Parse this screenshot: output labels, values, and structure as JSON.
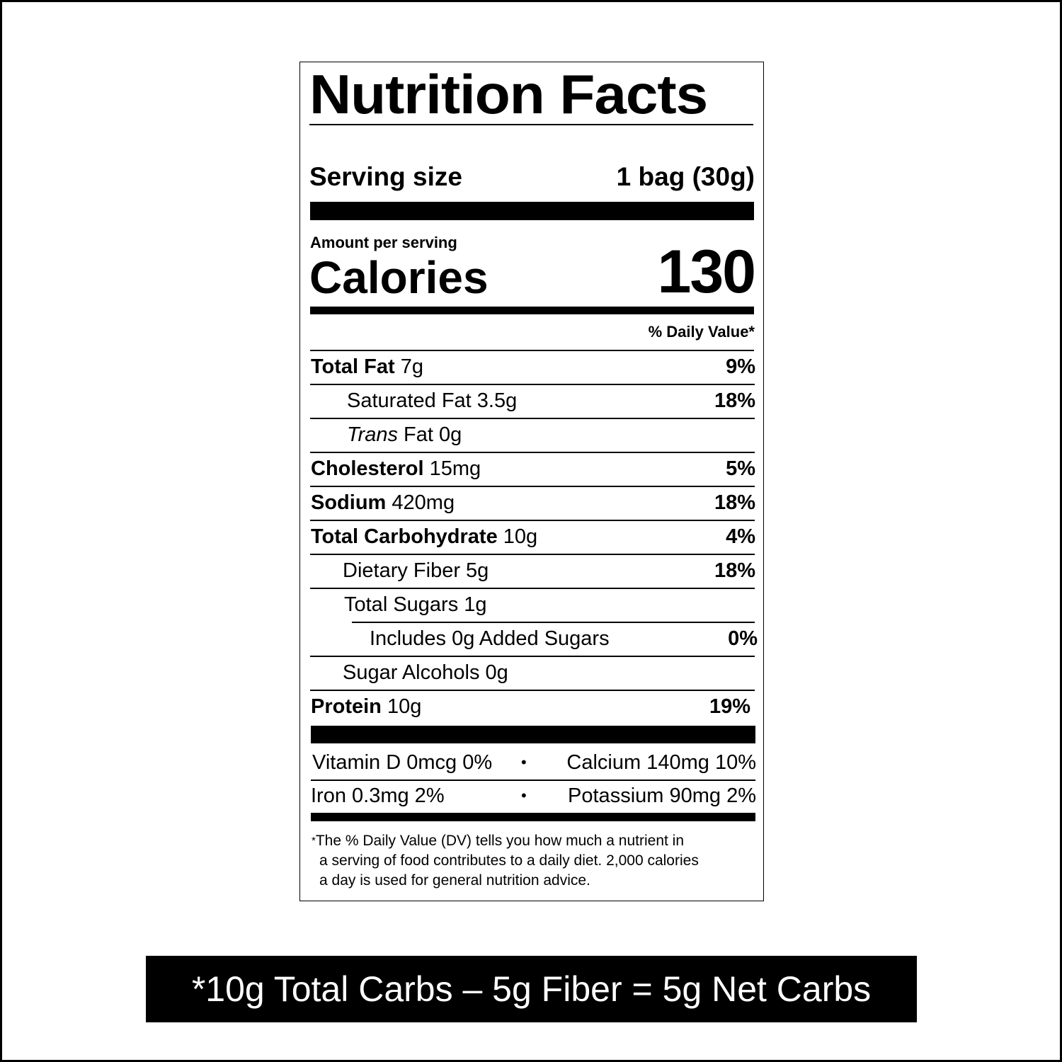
{
  "title": "Nutrition Facts",
  "serving": {
    "label": "Serving size",
    "value": "1 bag (30g)"
  },
  "amount_per_serving": "Amount per serving",
  "calories": {
    "label": "Calories",
    "value": "130"
  },
  "daily_value_header": "% Daily Value*",
  "rows": [
    {
      "name": "Total Fat",
      "amount": "7g",
      "pct": "9%"
    },
    {
      "name": "Saturated Fat 3.5g",
      "amount": "",
      "pct": "18%"
    },
    {
      "name": "Trans",
      "amount": "Fat 0g",
      "pct": ""
    },
    {
      "name": "Cholesterol",
      "amount": "15mg",
      "pct": "5%"
    },
    {
      "name": "Sodium",
      "amount": "420mg",
      "pct": "18%"
    },
    {
      "name": "Total Carbohydrate",
      "amount": "10g",
      "pct": "4%"
    },
    {
      "name": "Dietary Fiber 5g",
      "amount": "",
      "pct": "18%"
    },
    {
      "name": "Total Sugars 1g",
      "amount": "",
      "pct": ""
    },
    {
      "name": "Includes 0g Added Sugars",
      "amount": "",
      "pct": "0%"
    },
    {
      "name": "Sugar Alcohols 0g",
      "amount": "",
      "pct": ""
    },
    {
      "name": "Protein",
      "amount": "10g",
      "pct": "19%"
    }
  ],
  "vitamins": [
    {
      "left": "Vitamin D 0mcg 0%",
      "sep": "•",
      "right": "Calcium 140mg 10%"
    },
    {
      "left": "Iron 0.3mg 2%",
      "sep": "•",
      "right": "Potassium 90mg 2%"
    }
  ],
  "footnote": {
    "mark": "*",
    "lines": [
      "The % Daily Value (DV) tells you how much a nutrient in",
      "a serving of food contributes to a daily diet. 2,000 calories",
      "a day is used for general nutrition advice."
    ]
  },
  "net_carbs": "*10g Total Carbs – 5g Fiber = 5g Net Carbs"
}
